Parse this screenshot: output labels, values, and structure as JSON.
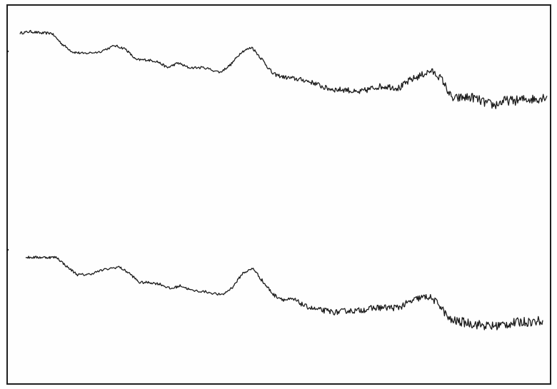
{
  "style": {
    "ink_color": "#1c1c1c",
    "paper_color": "#fefefe",
    "frame_color": "#1f1f1f"
  },
  "chart_data": {
    "type": "line",
    "title": "",
    "xlabel": "",
    "ylabel": "",
    "grid": false,
    "legend": "none",
    "axis_ticks": "none",
    "x_domain": [
      0,
      100
    ],
    "y_domain": [
      0,
      100
    ],
    "panels": [
      {
        "series": [
          {
            "x": [
              0,
              2,
              4,
              6,
              8,
              10,
              12,
              15,
              18,
              20,
              22,
              24,
              26,
              28,
              30,
              32,
              35,
              38,
              40,
              42,
              44,
              46,
              48,
              50,
              52,
              54,
              56,
              58,
              60,
              62,
              64,
              66,
              68,
              70,
              72,
              74,
              76,
              78,
              80,
              82,
              84,
              86,
              88,
              90,
              92,
              94,
              96,
              98,
              100
            ],
            "y": [
              88,
              89,
              88,
              88,
              81,
              76,
              75,
              76,
              80,
              78,
              71,
              71,
              70,
              66,
              69,
              66,
              66,
              63,
              68,
              76,
              79,
              71,
              62,
              60,
              59,
              58,
              56,
              53,
              52,
              52,
              50,
              52,
              54,
              54,
              53,
              58,
              61,
              64,
              59,
              46,
              47,
              47,
              44,
              42,
              45,
              45,
              46,
              46,
              48
            ],
            "noise": [
              0.8,
              0.8,
              0.8,
              0.8,
              0.8,
              0.8,
              0.8,
              0.8,
              0.8,
              0.8,
              0.8,
              0.8,
              0.8,
              0.8,
              0.8,
              0.8,
              0.8,
              0.8,
              0.8,
              0.8,
              0.8,
              1.2,
              1.2,
              1.2,
              1.5,
              1.5,
              1.5,
              1.8,
              1.8,
              1.8,
              1.8,
              2.0,
              2.0,
              2.0,
              2.2,
              2.2,
              2.2,
              2.2,
              2.2,
              2.8,
              3.0,
              3.0,
              3.0,
              3.0,
              3.0,
              3.0,
              3.0,
              3.0,
              3.0
            ]
          }
        ]
      },
      {
        "series": [
          {
            "x": [
              0,
              2,
              4,
              6,
              8,
              10,
              12,
              15,
              18,
              20,
              22,
              24,
              26,
              28,
              30,
              32,
              35,
              38,
              40,
              42,
              44,
              46,
              48,
              50,
              52,
              54,
              56,
              58,
              60,
              62,
              64,
              66,
              68,
              70,
              72,
              74,
              76,
              78,
              80,
              82,
              84,
              86,
              88,
              90,
              92,
              94,
              96,
              98,
              100
            ],
            "y": [
              87,
              87,
              87,
              87,
              81,
              76,
              76,
              79,
              81,
              77,
              71,
              71,
              70,
              67,
              69,
              66,
              65,
              63,
              68,
              77,
              80,
              71,
              63,
              60,
              60,
              56,
              54,
              53,
              52,
              53,
              53,
              54,
              55,
              55,
              55,
              58,
              61,
              62,
              57,
              47,
              46,
              45,
              44,
              43,
              44,
              45,
              46,
              46,
              47
            ],
            "noise": [
              0.8,
              0.8,
              0.8,
              0.8,
              0.8,
              0.8,
              0.8,
              0.8,
              0.8,
              0.8,
              0.8,
              0.8,
              0.8,
              0.8,
              0.8,
              0.8,
              0.8,
              0.8,
              0.8,
              0.8,
              0.8,
              1.2,
              1.2,
              1.2,
              1.5,
              1.5,
              1.5,
              1.8,
              1.8,
              1.8,
              1.8,
              2.0,
              2.0,
              2.0,
              2.2,
              2.2,
              2.2,
              2.2,
              2.2,
              2.8,
              3.0,
              3.0,
              3.0,
              3.0,
              3.0,
              3.0,
              3.0,
              3.0,
              3.0
            ]
          }
        ]
      }
    ]
  }
}
